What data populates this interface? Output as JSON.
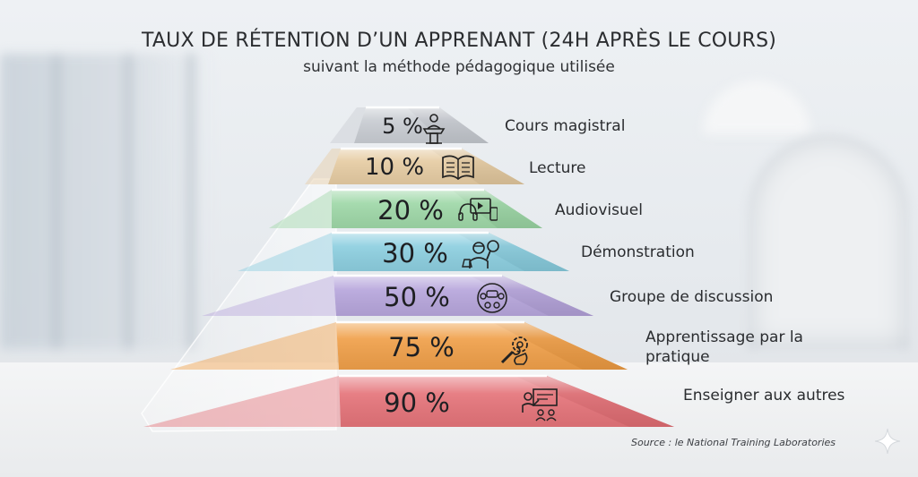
{
  "title": "TAUX DE RÉTENTION D’UN APPRENANT (24H APRÈS LE COURS)",
  "subtitle": "suivant la méthode pédagogique utilisée",
  "levels": [
    {
      "percent": "5 %",
      "label": "Cours magistral",
      "icon": "lectern-speaker-icon",
      "color": "#c9cdd3"
    },
    {
      "percent": "10 %",
      "label": "Lecture",
      "icon": "open-book-icon",
      "color": "#e6cca3"
    },
    {
      "percent": "20 %",
      "label": "Audiovisuel",
      "icon": "audiovisual-devices-icon",
      "color": "#9fd8a8"
    },
    {
      "percent": "30 %",
      "label": "Démonstration",
      "icon": "scientist-demonstration-icon",
      "color": "#8dcfe0"
    },
    {
      "percent": "50 %",
      "label": "Groupe de discussion",
      "icon": "discussion-group-icon",
      "color": "#b7a6dc"
    },
    {
      "percent": "75 %",
      "label": "Apprentissage par la\npratique",
      "icon": "hand-wrench-gear-icon",
      "color": "#f0a04a"
    },
    {
      "percent": "90 %",
      "label": "Enseigner aux autres",
      "icon": "teacher-board-icon",
      "color": "#e5747a"
    }
  ],
  "source": "Source : le National Training Laboratories"
}
